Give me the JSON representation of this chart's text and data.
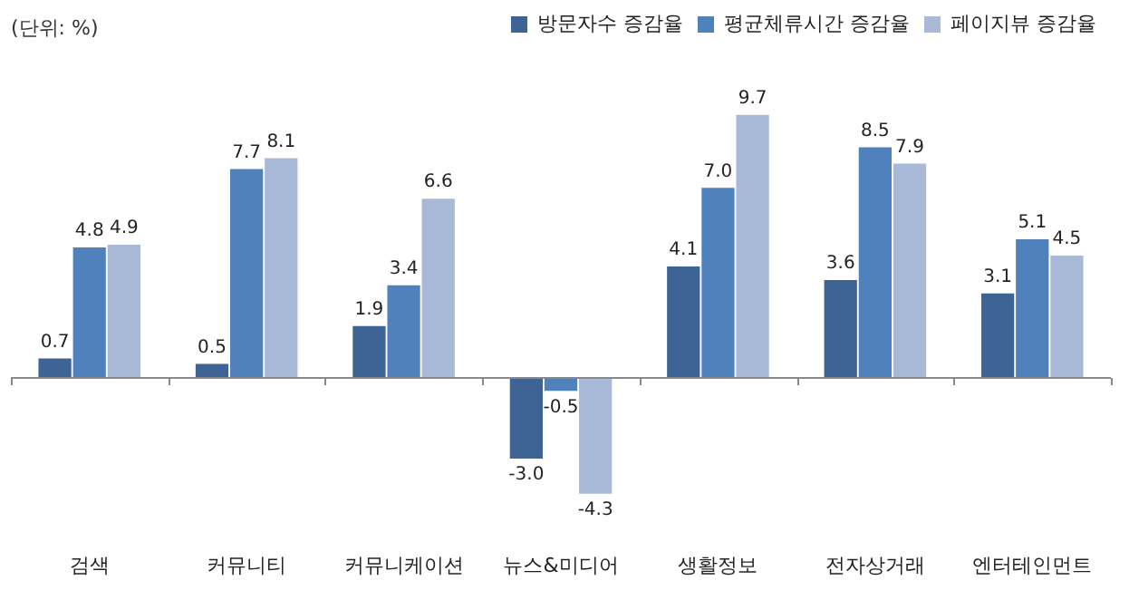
{
  "chart_data": {
    "type": "bar",
    "annotations": [
      "(단위: %)"
    ],
    "categories": [
      "검색",
      "커뮤니티",
      "커뮤니케이션",
      "뉴스&미디어",
      "생활정보",
      "전자상거래",
      "엔터테인먼트"
    ],
    "series": [
      {
        "name": "방문자수 증감율",
        "color": "#3d6495",
        "values": [
          0.7,
          0.5,
          1.9,
          -3,
          4.1,
          3.6,
          3.1
        ],
        "value_labels": [
          "0.7",
          "0.5",
          "1.9",
          "-3.0",
          "4.1",
          "3.6",
          "3.1"
        ]
      },
      {
        "name": "평균체류시간 증감율",
        "color": "#4f81bd",
        "values": [
          4.8,
          7.7,
          3.4,
          -0.5,
          7,
          8.5,
          5.1
        ],
        "value_labels": [
          "4.8",
          "7.7",
          "3.4",
          "-0.5",
          "7.0",
          "8.5",
          "5.1"
        ]
      },
      {
        "name": "페이지뷰 증감율",
        "color": "#a8b9d8",
        "values": [
          4.9,
          8.1,
          6.6,
          -4.3,
          9.7,
          7.9,
          4.5
        ],
        "value_labels": [
          "4.9",
          "8.1",
          "6.6",
          "-4.3",
          "9.7",
          "7.9",
          "4.5"
        ]
      }
    ],
    "legend": "top right"
  }
}
